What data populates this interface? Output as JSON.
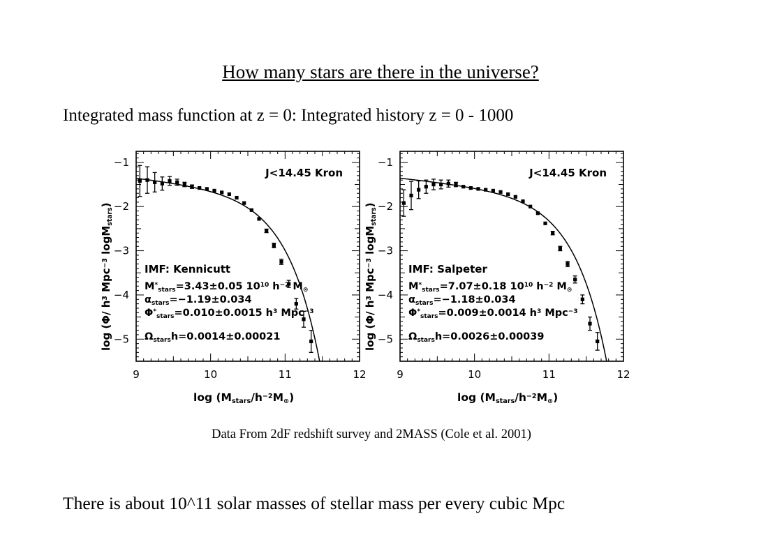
{
  "slide": {
    "title": "How many stars are there in the universe?",
    "subtitle": "Integrated mass function at z = 0: Integrated history z = 0 - 1000",
    "caption": "Data From 2dF redshift survey and 2MASS (Cole et al. 2001)",
    "conclusion": "There is about 10^11 solar masses of stellar mass per every cubic Mpc"
  },
  "chart_data": [
    {
      "type": "scatter",
      "title": "J<14.45 Kron",
      "xlabel": "log (Mstars/h-2M⊙)",
      "ylabel": "log (Φ/ h3 Mpc-3 logMstars)",
      "xlim": [
        9,
        12
      ],
      "ylim": [
        -5.5,
        -0.75
      ],
      "xticks": [
        9,
        10,
        11,
        12
      ],
      "yticks": [
        -1,
        -2,
        -3,
        -4,
        -5
      ],
      "annotations": [
        "IMF: Kennicutt",
        "M*stars=3.43±0.05 10^10 h-2 M⊙",
        "αstars=-1.19±0.034",
        "Φ*stars=0.010±0.0015 h3 Mpc-3",
        "Ωstarsh=0.0014±0.00021"
      ],
      "fit_params": {
        "logMstar": 10.535,
        "alpha": -1.19,
        "phistar": 0.01
      },
      "points": [
        {
          "x": 9.05,
          "y": -1.42,
          "err": 0.35
        },
        {
          "x": 9.15,
          "y": -1.4,
          "err": 0.3
        },
        {
          "x": 9.25,
          "y": -1.45,
          "err": 0.22
        },
        {
          "x": 9.35,
          "y": -1.48,
          "err": 0.15
        },
        {
          "x": 9.45,
          "y": -1.42,
          "err": 0.1
        },
        {
          "x": 9.55,
          "y": -1.45,
          "err": 0.07
        },
        {
          "x": 9.65,
          "y": -1.5,
          "err": 0.05
        },
        {
          "x": 9.75,
          "y": -1.55,
          "err": 0.04
        },
        {
          "x": 9.85,
          "y": -1.58,
          "err": 0.03
        },
        {
          "x": 9.95,
          "y": -1.6,
          "err": 0.03
        },
        {
          "x": 10.05,
          "y": -1.64,
          "err": 0.02
        },
        {
          "x": 10.15,
          "y": -1.68,
          "err": 0.02
        },
        {
          "x": 10.25,
          "y": -1.72,
          "err": 0.02
        },
        {
          "x": 10.35,
          "y": -1.8,
          "err": 0.02
        },
        {
          "x": 10.45,
          "y": -1.92,
          "err": 0.02
        },
        {
          "x": 10.55,
          "y": -2.08,
          "err": 0.02
        },
        {
          "x": 10.65,
          "y": -2.28,
          "err": 0.03
        },
        {
          "x": 10.75,
          "y": -2.55,
          "err": 0.04
        },
        {
          "x": 10.85,
          "y": -2.88,
          "err": 0.05
        },
        {
          "x": 10.95,
          "y": -3.25,
          "err": 0.06
        },
        {
          "x": 11.05,
          "y": -3.75,
          "err": 0.08
        },
        {
          "x": 11.15,
          "y": -4.2,
          "err": 0.12
        },
        {
          "x": 11.25,
          "y": -4.55,
          "err": 0.18
        },
        {
          "x": 11.35,
          "y": -5.05,
          "err": 0.25
        }
      ]
    },
    {
      "type": "scatter",
      "title": "J<14.45 Kron",
      "xlabel": "log (Mstars/h-2M⊙)",
      "ylabel": "log (Φ/ h3 Mpc-3 logMstars)",
      "xlim": [
        9,
        12
      ],
      "ylim": [
        -5.5,
        -0.75
      ],
      "xticks": [
        9,
        10,
        11,
        12
      ],
      "yticks": [
        -1,
        -2,
        -3,
        -4,
        -5
      ],
      "annotations": [
        "IMF: Salpeter",
        "M*stars=7.07±0.18 10^10 h-2 M⊙",
        "αstars=-1.18±0.034",
        "Φ*stars=0.009±0.0014 h3 Mpc-3",
        "Ωstarsh=0.0026±0.00039"
      ],
      "fit_params": {
        "logMstar": 10.849,
        "alpha": -1.18,
        "phistar": 0.009
      },
      "points": [
        {
          "x": 9.05,
          "y": -1.92,
          "err": 0.3
        },
        {
          "x": 9.15,
          "y": -1.75,
          "err": 0.32
        },
        {
          "x": 9.25,
          "y": -1.62,
          "err": 0.2
        },
        {
          "x": 9.35,
          "y": -1.55,
          "err": 0.15
        },
        {
          "x": 9.45,
          "y": -1.5,
          "err": 0.12
        },
        {
          "x": 9.55,
          "y": -1.5,
          "err": 0.1
        },
        {
          "x": 9.65,
          "y": -1.48,
          "err": 0.08
        },
        {
          "x": 9.75,
          "y": -1.5,
          "err": 0.05
        },
        {
          "x": 9.85,
          "y": -1.55,
          "err": 0.03
        },
        {
          "x": 9.95,
          "y": -1.58,
          "err": 0.03
        },
        {
          "x": 10.05,
          "y": -1.6,
          "err": 0.02
        },
        {
          "x": 10.15,
          "y": -1.62,
          "err": 0.02
        },
        {
          "x": 10.25,
          "y": -1.64,
          "err": 0.02
        },
        {
          "x": 10.35,
          "y": -1.67,
          "err": 0.02
        },
        {
          "x": 10.45,
          "y": -1.72,
          "err": 0.02
        },
        {
          "x": 10.55,
          "y": -1.78,
          "err": 0.02
        },
        {
          "x": 10.65,
          "y": -1.88,
          "err": 0.02
        },
        {
          "x": 10.75,
          "y": -2.0,
          "err": 0.02
        },
        {
          "x": 10.85,
          "y": -2.15,
          "err": 0.03
        },
        {
          "x": 10.95,
          "y": -2.38,
          "err": 0.03
        },
        {
          "x": 11.05,
          "y": -2.6,
          "err": 0.04
        },
        {
          "x": 11.15,
          "y": -2.95,
          "err": 0.05
        },
        {
          "x": 11.25,
          "y": -3.3,
          "err": 0.06
        },
        {
          "x": 11.35,
          "y": -3.65,
          "err": 0.08
        },
        {
          "x": 11.45,
          "y": -4.1,
          "err": 0.1
        },
        {
          "x": 11.55,
          "y": -4.65,
          "err": 0.15
        },
        {
          "x": 11.65,
          "y": -5.05,
          "err": 0.2
        }
      ]
    }
  ]
}
